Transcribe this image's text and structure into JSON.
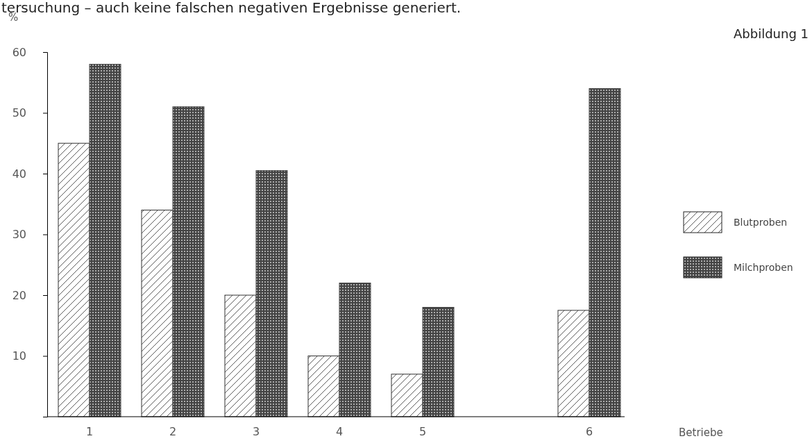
{
  "chart_data": {
    "type": "bar",
    "ylabel": "%",
    "categories": [
      "1",
      "2",
      "3",
      "4",
      "5",
      null,
      "6"
    ],
    "series": [
      {
        "name": "Blutproben",
        "color": "#333333",
        "values": [
          45,
          34,
          20,
          10,
          7,
          null,
          17.5
        ]
      },
      {
        "name": "Milchproben",
        "color": "#444444",
        "values": [
          58,
          51,
          40.5,
          22,
          18,
          null,
          54
        ]
      }
    ],
    "ylim": [
      0,
      60
    ],
    "yticks": [
      {
        "value": 0,
        "label": null
      },
      10,
      20,
      30,
      40,
      50,
      60
    ],
    "grid": false,
    "legend": "right",
    "annotations": [
      "tersuchung – auch keine falschen negativen Ergebnisse generiert.",
      "Abbildung 1",
      "Betriebe"
    ]
  }
}
